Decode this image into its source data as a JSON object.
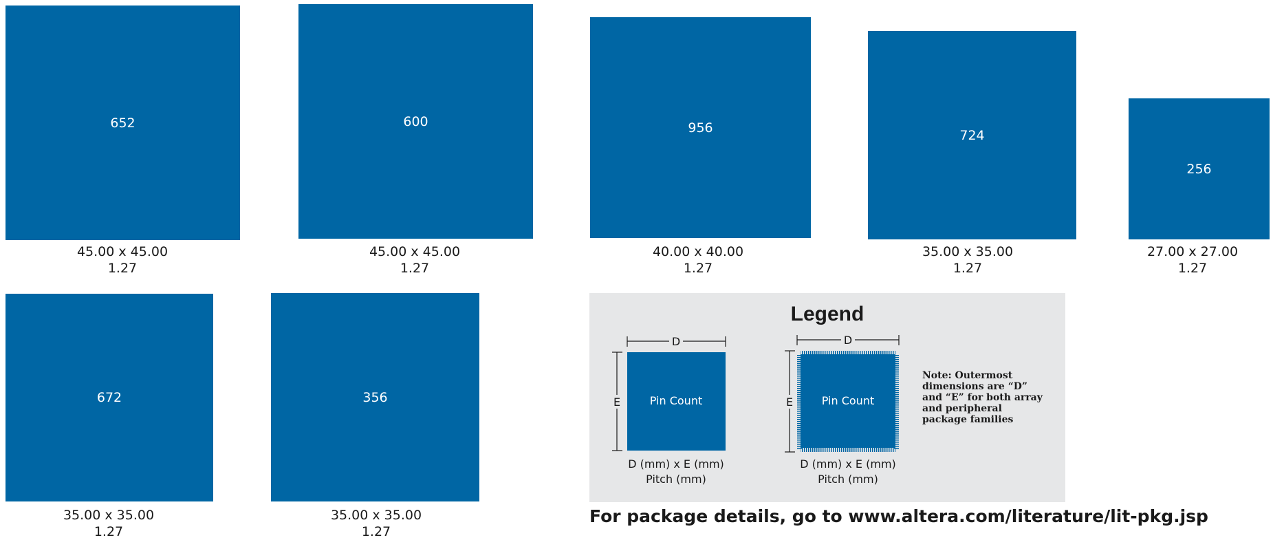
{
  "packages": [
    {
      "pin_count": "652",
      "dimensions": "45.00 x 45.00",
      "pitch": "1.27"
    },
    {
      "pin_count": "600",
      "dimensions": "45.00 x 45.00",
      "pitch": "1.27"
    },
    {
      "pin_count": "956",
      "dimensions": "40.00 x 40.00",
      "pitch": "1.27"
    },
    {
      "pin_count": "724",
      "dimensions": "35.00 x 35.00",
      "pitch": "1.27"
    },
    {
      "pin_count": "256",
      "dimensions": "27.00 x 27.00",
      "pitch": "1.27"
    },
    {
      "pin_count": "672",
      "dimensions": "35.00 x 35.00",
      "pitch": "1.27"
    },
    {
      "pin_count": "356",
      "dimensions": "35.00 x 35.00",
      "pitch": "1.27"
    }
  ],
  "legend": {
    "title": "Legend",
    "array": {
      "d_label": "D",
      "e_label": "E",
      "center": "Pin Count",
      "dims": "D (mm) x E (mm)",
      "pitch": "Pitch (mm)"
    },
    "peripheral": {
      "d_label": "D",
      "e_label": "E",
      "center": "Pin Count",
      "dims": "D (mm) x E (mm)",
      "pitch": "Pitch (mm)"
    },
    "note": "Note: Outermost dimensions are “D” and “E” for both array and peripheral package families"
  },
  "footer": "For package details, go to www.altera.com/literature/lit-pkg.jsp",
  "colors": {
    "package_fill": "#0066a4",
    "legend_bg": "#e6e7e8"
  }
}
